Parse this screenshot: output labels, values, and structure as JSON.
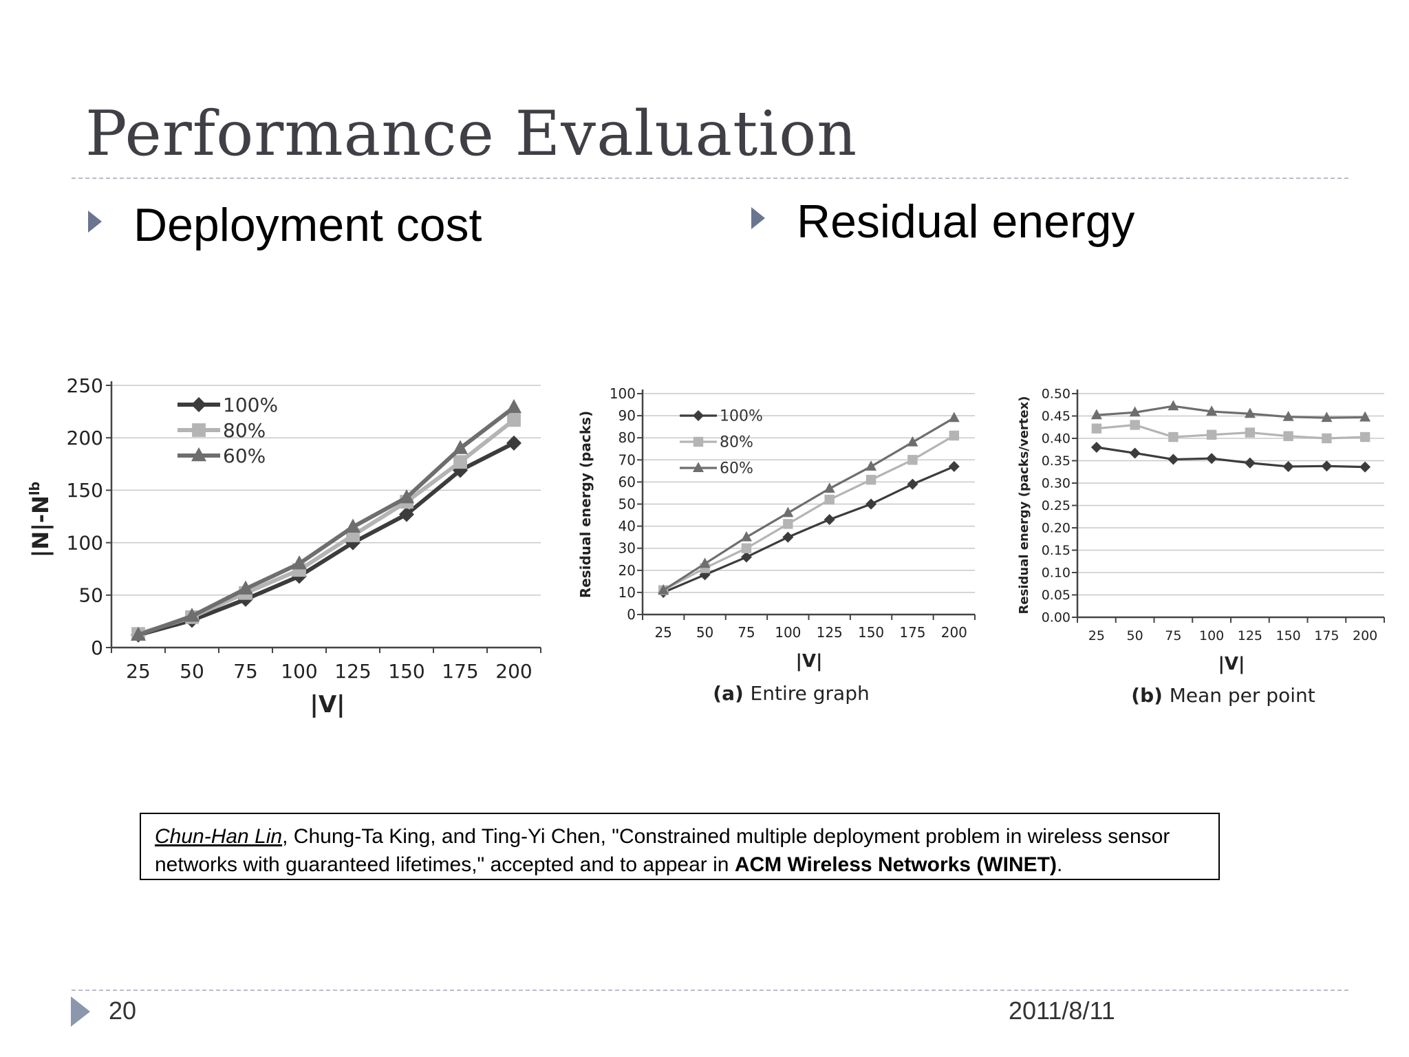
{
  "slide": {
    "title": "Performance Evaluation",
    "bullet_left": "Deployment cost",
    "bullet_right": "Residual energy",
    "page_number": "20",
    "date": "2011/8/11"
  },
  "citation": {
    "author_lead": "Chun-Han Lin",
    "rest_line1": ", Chung-Ta King, and Ting-Yi Chen, \"Constrained multiple deployment problem in wireless sensor",
    "line2_prefix": "networks with guaranteed lifetimes,\" accepted and to appear in ",
    "venue": "ACM Wireless Networks (WINET)",
    "line2_suffix": "."
  },
  "chart_data": [
    {
      "type": "line",
      "title": "",
      "xlabel": "|V|",
      "ylabel": "|N|-N",
      "ylabel_sup": "lb",
      "categories": [
        "25",
        "50",
        "75",
        "100",
        "125",
        "150",
        "175",
        "200"
      ],
      "ylim": [
        0,
        250
      ],
      "yticks": [
        "0",
        "50",
        "100",
        "150",
        "200",
        "250"
      ],
      "grid": true,
      "legend": "top-left",
      "series": [
        {
          "name": "100%",
          "marker": "diamond",
          "color": "#3c3c3c",
          "values": [
            12,
            26,
            46,
            68,
            100,
            127,
            169,
            195
          ]
        },
        {
          "name": "80%",
          "marker": "square",
          "color": "#b4b4b4",
          "values": [
            13,
            29,
            52,
            74,
            107,
            139,
            177,
            217
          ]
        },
        {
          "name": "60%",
          "marker": "triangle",
          "color": "#6e6e6e",
          "values": [
            12,
            30,
            56,
            80,
            115,
            143,
            190,
            229
          ]
        }
      ]
    },
    {
      "type": "line",
      "title": "",
      "caption_bold": "(a)",
      "caption": "Entire graph",
      "xlabel": "|V|",
      "ylabel": "Residual energy (packs)",
      "categories": [
        "25",
        "50",
        "75",
        "100",
        "125",
        "150",
        "175",
        "200"
      ],
      "ylim": [
        0,
        100
      ],
      "yticks": [
        "0",
        "10",
        "20",
        "30",
        "40",
        "50",
        "60",
        "70",
        "80",
        "90",
        "100"
      ],
      "grid": true,
      "legend": "top-left",
      "series": [
        {
          "name": "100%",
          "marker": "diamond",
          "color": "#3c3c3c",
          "values": [
            10,
            18,
            26,
            35,
            43,
            50,
            59,
            67
          ]
        },
        {
          "name": "80%",
          "marker": "square",
          "color": "#b4b4b4",
          "values": [
            11,
            21,
            30,
            41,
            52,
            61,
            70,
            81
          ]
        },
        {
          "name": "60%",
          "marker": "triangle",
          "color": "#6e6e6e",
          "values": [
            11,
            23,
            35,
            46,
            57,
            67,
            78,
            89
          ]
        }
      ]
    },
    {
      "type": "line",
      "title": "",
      "caption_bold": "(b)",
      "caption": "Mean per point",
      "xlabel": "|V|",
      "ylabel": "Residual energy (packs/vertex)",
      "categories": [
        "25",
        "50",
        "75",
        "100",
        "125",
        "150",
        "175",
        "200"
      ],
      "ylim": [
        0,
        0.5
      ],
      "yticks": [
        "0.00",
        "0.05",
        "0.10",
        "0.15",
        "0.20",
        "0.25",
        "0.30",
        "0.35",
        "0.40",
        "0.45",
        "0.50"
      ],
      "grid": true,
      "series": [
        {
          "marker": "diamond",
          "color": "#3c3c3c",
          "values": [
            0.38,
            0.367,
            0.353,
            0.355,
            0.345,
            0.337,
            0.338,
            0.336
          ]
        },
        {
          "marker": "square",
          "color": "#b4b4b4",
          "values": [
            0.422,
            0.43,
            0.403,
            0.408,
            0.413,
            0.405,
            0.4,
            0.403
          ]
        },
        {
          "marker": "triangle",
          "color": "#6e6e6e",
          "values": [
            0.452,
            0.458,
            0.472,
            0.46,
            0.455,
            0.448,
            0.446,
            0.447
          ]
        }
      ]
    }
  ]
}
